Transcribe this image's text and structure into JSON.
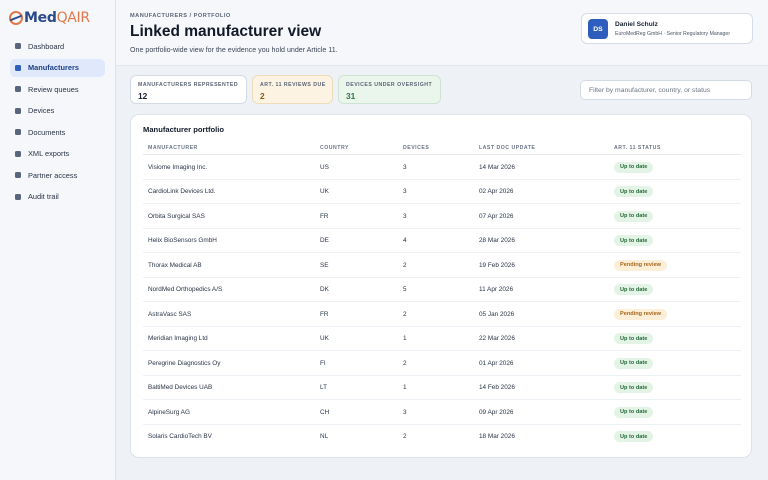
{
  "brand": {
    "name_prefix": "Med",
    "name_suffix": "QAIR",
    "accent": "#e0784a",
    "primary": "#2b4a8a"
  },
  "sidebar": {
    "items": [
      {
        "label": "Dashboard",
        "active": false
      },
      {
        "label": "Manufacturers",
        "active": true
      },
      {
        "label": "Review queues",
        "active": false
      },
      {
        "label": "Devices",
        "active": false
      },
      {
        "label": "Documents",
        "active": false
      },
      {
        "label": "XML exports",
        "active": false
      },
      {
        "label": "Partner access",
        "active": false
      },
      {
        "label": "Audit trail",
        "active": false
      }
    ]
  },
  "header": {
    "breadcrumb": "MANUFACTURERS / PORTFOLIO",
    "title": "Linked manufacturer view",
    "subtitle": "One portfolio-wide view for the evidence you hold under Article 11."
  },
  "user": {
    "initials": "DS",
    "name": "Daniel Schulz",
    "role": "EuroMedReg GmbH · Senior Regulatory Manager"
  },
  "stats": [
    {
      "label": "MANUFACTURERS REPRESENTED",
      "value": "12",
      "tone": "neutral"
    },
    {
      "label": "ART. 11 REVIEWS DUE",
      "value": "2",
      "tone": "amber"
    },
    {
      "label": "DEVICES UNDER OVERSIGHT",
      "value": "31",
      "tone": "green"
    }
  ],
  "filter": {
    "placeholder": "Filter by manufacturer, country, or status",
    "value": ""
  },
  "table": {
    "title": "Manufacturer portfolio",
    "columns": [
      "MANUFACTURER",
      "COUNTRY",
      "DEVICES",
      "LAST DOC UPDATE",
      "ART. 11 STATUS"
    ],
    "rows": [
      {
        "manufacturer": "Visiome Imaging Inc.",
        "country": "US",
        "devices": "3",
        "updated": "14 Mar 2026",
        "status": "Up to date",
        "status_type": "ok"
      },
      {
        "manufacturer": "CardioLink Devices Ltd.",
        "country": "UK",
        "devices": "3",
        "updated": "02 Apr 2026",
        "status": "Up to date",
        "status_type": "ok"
      },
      {
        "manufacturer": "Orbita Surgical SAS",
        "country": "FR",
        "devices": "3",
        "updated": "07 Apr 2026",
        "status": "Up to date",
        "status_type": "ok"
      },
      {
        "manufacturer": "Helix BioSensors GmbH",
        "country": "DE",
        "devices": "4",
        "updated": "28 Mar 2026",
        "status": "Up to date",
        "status_type": "ok"
      },
      {
        "manufacturer": "Thorax Medical AB",
        "country": "SE",
        "devices": "2",
        "updated": "19 Feb 2026",
        "status": "Pending review",
        "status_type": "pending"
      },
      {
        "manufacturer": "NordMed Orthopedics A/S",
        "country": "DK",
        "devices": "5",
        "updated": "11 Apr 2026",
        "status": "Up to date",
        "status_type": "ok"
      },
      {
        "manufacturer": "AstraVasc SAS",
        "country": "FR",
        "devices": "2",
        "updated": "05 Jan 2026",
        "status": "Pending review",
        "status_type": "pending"
      },
      {
        "manufacturer": "Meridian Imaging Ltd",
        "country": "UK",
        "devices": "1",
        "updated": "22 Mar 2026",
        "status": "Up to date",
        "status_type": "ok"
      },
      {
        "manufacturer": "Peregrine Diagnostics Oy",
        "country": "FI",
        "devices": "2",
        "updated": "01 Apr 2026",
        "status": "Up to date",
        "status_type": "ok"
      },
      {
        "manufacturer": "BaltiMed Devices UAB",
        "country": "LT",
        "devices": "1",
        "updated": "14 Feb 2026",
        "status": "Up to date",
        "status_type": "ok"
      },
      {
        "manufacturer": "AlpineSurg AG",
        "country": "CH",
        "devices": "3",
        "updated": "09 Apr 2026",
        "status": "Up to date",
        "status_type": "ok"
      },
      {
        "manufacturer": "Solaris CardioTech BV",
        "country": "NL",
        "devices": "2",
        "updated": "18 Mar 2026",
        "status": "Up to date",
        "status_type": "ok"
      }
    ]
  }
}
